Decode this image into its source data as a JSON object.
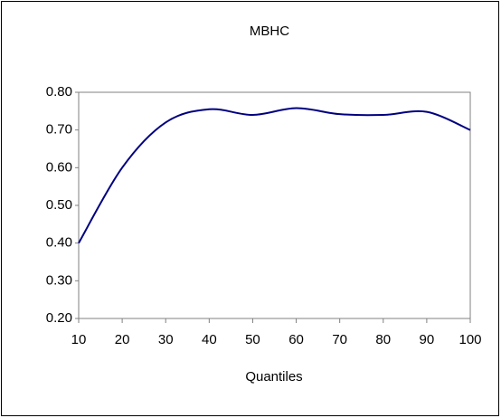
{
  "chart_data": {
    "type": "line",
    "title": "MBHC",
    "x_label": "Quantiles",
    "x": [
      10,
      20,
      30,
      40,
      50,
      60,
      70,
      80,
      90,
      100
    ],
    "series": [
      {
        "name": "MBHC",
        "color": "#000080",
        "values": [
          0.4,
          0.6,
          0.72,
          0.755,
          0.74,
          0.758,
          0.742,
          0.74,
          0.748,
          0.7
        ]
      }
    ],
    "xlim": [
      10,
      100
    ],
    "xticks": [
      10,
      20,
      30,
      40,
      50,
      60,
      70,
      80,
      90,
      100
    ],
    "ylim": [
      0.2,
      0.8
    ],
    "yticks": [
      {
        "value": 0.2,
        "label": "0.20"
      },
      {
        "value": 0.3,
        "label": "0.30"
      },
      {
        "value": 0.4,
        "label": "0.40"
      },
      {
        "value": 0.5,
        "label": "0.50"
      },
      {
        "value": 0.6,
        "label": "0.60"
      },
      {
        "value": 0.7,
        "label": "0.70"
      },
      {
        "value": 0.8,
        "label": "0.80"
      }
    ],
    "grid": false,
    "smooth": true
  }
}
